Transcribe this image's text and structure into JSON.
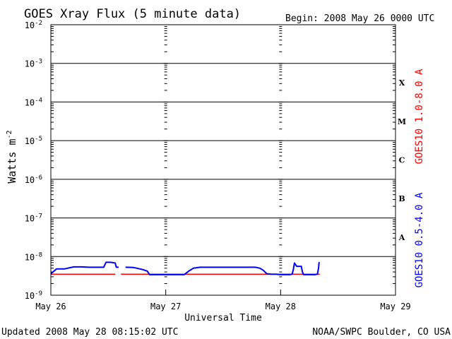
{
  "chart_data": {
    "type": "line",
    "title": "GOES Xray Flux (5 minute data)",
    "begin": "Begin:  2008 May 26 0000 UTC",
    "xlabel": "Universal Time",
    "ylabel": "Watts m",
    "ylabel_sup": "-2",
    "y_scale": "log",
    "ylim": [
      1e-09,
      0.01
    ],
    "y_ticks": [
      {
        "value": 0.01,
        "label": "10",
        "exp": "-2"
      },
      {
        "value": 0.001,
        "label": "10",
        "exp": "-3"
      },
      {
        "value": 0.0001,
        "label": "10",
        "exp": "-4"
      },
      {
        "value": 1e-05,
        "label": "10",
        "exp": "-5"
      },
      {
        "value": 1e-06,
        "label": "10",
        "exp": "-6"
      },
      {
        "value": 1e-07,
        "label": "10",
        "exp": "-7"
      },
      {
        "value": 1e-08,
        "label": "10",
        "exp": "-8"
      },
      {
        "value": 1e-09,
        "label": "10",
        "exp": "-9"
      }
    ],
    "x_unit": "days since 2008 May 26 0000 UTC",
    "xlim": [
      0,
      3
    ],
    "x_ticks": [
      {
        "value": 0,
        "label": "May 26"
      },
      {
        "value": 1,
        "label": "May 27"
      },
      {
        "value": 2,
        "label": "May 28"
      },
      {
        "value": 3,
        "label": "May 29"
      }
    ],
    "grid_major_y": [
      0.001,
      0.0001,
      1e-05,
      1e-06,
      1e-07,
      1e-08
    ],
    "flare_classes": [
      {
        "label": "X",
        "value": 0.000316
      },
      {
        "label": "M",
        "value": 3.16e-05
      },
      {
        "label": "C",
        "value": 3.16e-06
      },
      {
        "label": "B",
        "value": 3.16e-07
      },
      {
        "label": "A",
        "value": 3.16e-08
      }
    ],
    "series": [
      {
        "name": "GOES10 0.5-4.0 A",
        "color": "#0000ff",
        "x": [
          0,
          0.05,
          0.12,
          0.2,
          0.27,
          0.33,
          0.4,
          0.46,
          0.48,
          0.52,
          0.56,
          0.57,
          0.59,
          0.6,
          0.61,
          0.65,
          0.72,
          0.76,
          0.8,
          0.84,
          0.86,
          0.92,
          1.0,
          1.1,
          1.16,
          1.2,
          1.24,
          1.3,
          1.4,
          1.5,
          1.6,
          1.7,
          1.78,
          1.82,
          1.85,
          1.88,
          1.92,
          1.96,
          2.0,
          2.04,
          2.08,
          2.1,
          2.11,
          2.12,
          2.14,
          2.16,
          2.18,
          2.19,
          2.2,
          2.26,
          2.3,
          2.32,
          2.33,
          2.335,
          2.34
        ],
        "y": [
          3.6e-09,
          4.8e-09,
          4.8e-09,
          5.4e-09,
          5.4e-09,
          5.3e-09,
          5.3e-09,
          5.3e-09,
          7.1e-09,
          7.1e-09,
          6.8e-09,
          5.3e-09,
          5.3e-09,
          null,
          null,
          5.3e-09,
          5.2e-09,
          4.9e-09,
          4.6e-09,
          4.2e-09,
          3.4e-09,
          3.4e-09,
          3.4e-09,
          3.4e-09,
          3.4e-09,
          4.2e-09,
          5e-09,
          5.3e-09,
          5.3e-09,
          5.3e-09,
          5.3e-09,
          5.3e-09,
          5.3e-09,
          5e-09,
          4.4e-09,
          3.6e-09,
          3.5e-09,
          3.5e-09,
          3.4e-09,
          3.4e-09,
          3.4e-09,
          3.5e-09,
          4.5e-09,
          6.8e-09,
          5.6e-09,
          5.6e-09,
          5.6e-09,
          4e-09,
          3.4e-09,
          3.4e-09,
          3.4e-09,
          3.5e-09,
          5e-09,
          7e-09,
          7e-09
        ]
      },
      {
        "name": "GOES10 1.0-8.0 A",
        "color": "#ff0000",
        "x": [
          0,
          0.5,
          0.56,
          0.59,
          0.61,
          1.0,
          1.5,
          2.0,
          2.34
        ],
        "y": [
          3.5e-09,
          3.5e-09,
          3.5e-09,
          null,
          3.5e-09,
          3.5e-09,
          3.5e-09,
          3.5e-09,
          3.5e-09
        ]
      }
    ]
  },
  "footer": {
    "updated": "Updated 2008 May 28 08:15:02 UTC",
    "credit": "NOAA/SWPC Boulder, CO USA"
  }
}
